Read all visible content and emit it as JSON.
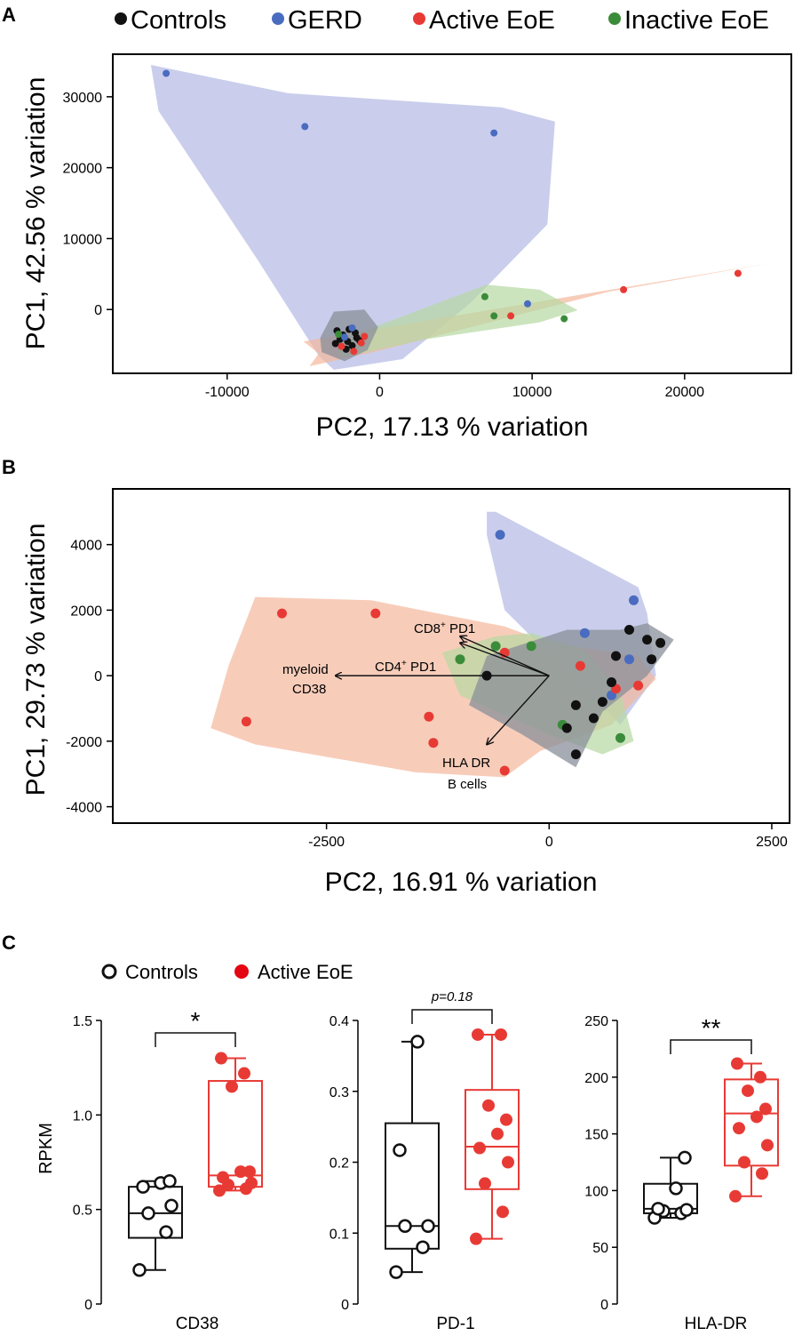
{
  "colors": {
    "controls": "#111111",
    "gerd": "#4a6cc0",
    "active": "#e83a35",
    "inactive": "#3b8c3a",
    "hull_gerd": "#b8bde6",
    "hull_active": "#f3b89d",
    "hull_inactive": "#b7d9a2",
    "hull_controls": "#8a8f9a"
  },
  "legend_top": {
    "items": [
      {
        "key": "controls",
        "label": "Controls"
      },
      {
        "key": "gerd",
        "label": "GERD"
      },
      {
        "key": "active",
        "label": "Active EoE"
      },
      {
        "key": "inactive",
        "label": "Inactive EoE"
      }
    ]
  },
  "legend_c": {
    "items": [
      {
        "key": "controls",
        "label": "Controls"
      },
      {
        "key": "active",
        "label": "Active EoE"
      }
    ]
  },
  "chart_data": [
    {
      "panel": "A",
      "type": "scatter",
      "xlabel": "PC2, 17.13 % variation",
      "ylabel": "PC1, 42.56 % variation",
      "xlim": [
        -17500,
        27000
      ],
      "ylim": [
        -9000,
        36000
      ],
      "xticks": [
        -10000,
        0,
        10000,
        20000
      ],
      "yticks": [
        0,
        10000,
        20000,
        30000
      ],
      "hulls": [
        {
          "group": "gerd",
          "points": [
            [
              -15000,
              34500
            ],
            [
              -6000,
              30500
            ],
            [
              8000,
              28500
            ],
            [
              11500,
              26500
            ],
            [
              11000,
              12000
            ],
            [
              6000,
              1000
            ],
            [
              1500,
              -7000
            ],
            [
              -3000,
              -8500
            ],
            [
              -4000,
              -6500
            ],
            [
              -8000,
              7000
            ],
            [
              -14500,
              28000
            ]
          ]
        },
        {
          "group": "active",
          "points": [
            [
              -5000,
              -4500
            ],
            [
              4000,
              -1200
            ],
            [
              25500,
              6500
            ],
            [
              15000,
              2500
            ],
            [
              0,
              -5800
            ],
            [
              -4600,
              -8000
            ],
            [
              -4000,
              -6200
            ],
            [
              -5000,
              -4500
            ]
          ]
        },
        {
          "group": "inactive",
          "points": [
            [
              -3000,
              -4600
            ],
            [
              7000,
              3500
            ],
            [
              10500,
              2800
            ],
            [
              13000,
              -100
            ],
            [
              10500,
              -1800
            ],
            [
              3000,
              -4200
            ],
            [
              -2500,
              -6800
            ]
          ]
        },
        {
          "group": "controls",
          "points": [
            [
              -3000,
              -300
            ],
            [
              -1000,
              0
            ],
            [
              -100,
              -2500
            ],
            [
              -800,
              -5700
            ],
            [
              -2300,
              -7300
            ],
            [
              -3800,
              -6000
            ],
            [
              -3900,
              -4000
            ]
          ]
        }
      ],
      "points": [
        {
          "group": "gerd",
          "x": -14000,
          "y": 33300
        },
        {
          "group": "gerd",
          "x": -4900,
          "y": 25800
        },
        {
          "group": "gerd",
          "x": 7500,
          "y": 24900
        },
        {
          "group": "gerd",
          "x": 9700,
          "y": 800
        },
        {
          "group": "active",
          "x": 23500,
          "y": 5100
        },
        {
          "group": "active",
          "x": 16000,
          "y": 2800
        },
        {
          "group": "active",
          "x": 8600,
          "y": -900
        },
        {
          "group": "inactive",
          "x": 6900,
          "y": 1800
        },
        {
          "group": "inactive",
          "x": 7500,
          "y": -900
        },
        {
          "group": "inactive",
          "x": 12100,
          "y": -1300
        },
        {
          "group": "controls",
          "x": -2800,
          "y": -3000
        },
        {
          "group": "controls",
          "x": -2400,
          "y": -3600
        },
        {
          "group": "controls",
          "x": -2000,
          "y": -2800
        },
        {
          "group": "controls",
          "x": -1600,
          "y": -3300
        },
        {
          "group": "controls",
          "x": -2600,
          "y": -4200
        },
        {
          "group": "controls",
          "x": -2100,
          "y": -4500
        },
        {
          "group": "controls",
          "x": -1800,
          "y": -5100
        },
        {
          "group": "controls",
          "x": -2200,
          "y": -5600
        },
        {
          "group": "controls",
          "x": -1500,
          "y": -4000
        },
        {
          "group": "controls",
          "x": -2900,
          "y": -4800
        },
        {
          "group": "controls",
          "x": -1300,
          "y": -4400
        },
        {
          "group": "active",
          "x": -1200,
          "y": -4700
        },
        {
          "group": "active",
          "x": -1000,
          "y": -3800
        },
        {
          "group": "active",
          "x": -2500,
          "y": -5200
        },
        {
          "group": "active",
          "x": -1700,
          "y": -5900
        },
        {
          "group": "gerd",
          "x": -1800,
          "y": -2600
        },
        {
          "group": "gerd",
          "x": -2300,
          "y": -3900
        },
        {
          "group": "inactive",
          "x": -2700,
          "y": -3500
        }
      ]
    },
    {
      "panel": "B",
      "type": "scatter",
      "xlabel": "PC2, 16.91 % variation",
      "ylabel": "PC1, 29.73 % variation",
      "xlim": [
        -4900,
        2700
      ],
      "ylim": [
        -4500,
        5700
      ],
      "xticks": [
        -2500,
        0,
        2500
      ],
      "yticks": [
        -4000,
        -2000,
        0,
        2000,
        4000
      ],
      "hulls": [
        {
          "group": "gerd",
          "points": [
            [
              -700,
              5000
            ],
            [
              -600,
              5000
            ],
            [
              1000,
              2700
            ],
            [
              1100,
              1900
            ],
            [
              1200,
              0
            ],
            [
              800,
              -1500
            ],
            [
              -500,
              2000
            ],
            [
              -700,
              4300
            ]
          ]
        },
        {
          "group": "active",
          "points": [
            [
              -3300,
              2400
            ],
            [
              -2000,
              2300
            ],
            [
              -500,
              1500
            ],
            [
              0,
              1000
            ],
            [
              1000,
              600
            ],
            [
              1200,
              -100
            ],
            [
              700,
              -1500
            ],
            [
              -100,
              -2300
            ],
            [
              -500,
              -3100
            ],
            [
              -1500,
              -2950
            ],
            [
              -3300,
              -2100
            ],
            [
              -3800,
              -1600
            ],
            [
              -3600,
              300
            ]
          ]
        },
        {
          "group": "inactive",
          "points": [
            [
              -1200,
              700
            ],
            [
              -600,
              1200
            ],
            [
              -200,
              1300
            ],
            [
              400,
              800
            ],
            [
              800,
              -500
            ],
            [
              950,
              -2000
            ],
            [
              600,
              -2400
            ],
            [
              0,
              -1800
            ],
            [
              -1000,
              -600
            ]
          ]
        },
        {
          "group": "controls",
          "points": [
            [
              -700,
              600
            ],
            [
              200,
              1400
            ],
            [
              800,
              1400
            ],
            [
              1100,
              1600
            ],
            [
              1400,
              1100
            ],
            [
              1100,
              0
            ],
            [
              600,
              -1100
            ],
            [
              300,
              -2800
            ],
            [
              -300,
              -1800
            ],
            [
              -900,
              -900
            ]
          ]
        }
      ],
      "points": [
        {
          "group": "gerd",
          "x": -550,
          "y": 4300
        },
        {
          "group": "gerd",
          "x": 950,
          "y": 2300
        },
        {
          "group": "gerd",
          "x": 400,
          "y": 1300
        },
        {
          "group": "gerd",
          "x": 900,
          "y": 500
        },
        {
          "group": "gerd",
          "x": 700,
          "y": -600
        },
        {
          "group": "active",
          "x": -3000,
          "y": 1900
        },
        {
          "group": "active",
          "x": -1950,
          "y": 1900
        },
        {
          "group": "active",
          "x": -3400,
          "y": -1400
        },
        {
          "group": "active",
          "x": -1350,
          "y": -1250
        },
        {
          "group": "active",
          "x": -1300,
          "y": -2050
        },
        {
          "group": "active",
          "x": -500,
          "y": -2900
        },
        {
          "group": "active",
          "x": -500,
          "y": 700
        },
        {
          "group": "active",
          "x": 350,
          "y": 300
        },
        {
          "group": "active",
          "x": 1000,
          "y": -300
        },
        {
          "group": "active",
          "x": 750,
          "y": -400
        },
        {
          "group": "inactive",
          "x": -1000,
          "y": 500
        },
        {
          "group": "inactive",
          "x": -600,
          "y": 900
        },
        {
          "group": "inactive",
          "x": -200,
          "y": 900
        },
        {
          "group": "inactive",
          "x": 150,
          "y": -1500
        },
        {
          "group": "inactive",
          "x": 800,
          "y": -1900
        },
        {
          "group": "controls",
          "x": -700,
          "y": 0
        },
        {
          "group": "controls",
          "x": 900,
          "y": 1400
        },
        {
          "group": "controls",
          "x": 1100,
          "y": 1100
        },
        {
          "group": "controls",
          "x": 1250,
          "y": 1000
        },
        {
          "group": "controls",
          "x": 750,
          "y": 600
        },
        {
          "group": "controls",
          "x": 1150,
          "y": 500
        },
        {
          "group": "controls",
          "x": 700,
          "y": -200
        },
        {
          "group": "controls",
          "x": 600,
          "y": -800
        },
        {
          "group": "controls",
          "x": 300,
          "y": -900
        },
        {
          "group": "controls",
          "x": 500,
          "y": -1300
        },
        {
          "group": "controls",
          "x": 200,
          "y": -1600
        },
        {
          "group": "controls",
          "x": 300,
          "y": -2400
        }
      ],
      "arrows": {
        "origin": [
          0,
          0
        ],
        "items": [
          {
            "tip": [
              -1000,
              1200
            ],
            "labels": [
              "CD8",
              "PD1"
            ]
          },
          {
            "tip": [
              -1000,
              1000
            ],
            "labels": [
              "CD4",
              "PD1"
            ]
          },
          {
            "tip": [
              -2400,
              0
            ],
            "labels": [
              "myeloid",
              "CD38"
            ]
          },
          {
            "tip": [
              -700,
              -2100
            ],
            "labels": [
              "HLA DR",
              "B cells"
            ]
          }
        ],
        "superscript": "+"
      }
    },
    {
      "panel": "C",
      "type": "box",
      "ylabel": "RPKM",
      "subplots": [
        {
          "name": "CD38",
          "ylim": [
            0,
            1.5
          ],
          "yticks": [
            "0",
            "0.5",
            "1.0",
            "1.5"
          ],
          "ytick_values": [
            0,
            0.5,
            1.0,
            1.5
          ],
          "significance": "*",
          "groups": [
            {
              "group": "controls",
              "filled": false,
              "box": {
                "min": 0.18,
                "q1": 0.35,
                "median": 0.48,
                "q3": 0.62,
                "max": 0.65
              },
              "points": [
                0.18,
                0.38,
                0.48,
                0.52,
                0.62,
                0.64,
                0.65
              ]
            },
            {
              "group": "active",
              "filled": true,
              "box": {
                "min": 0.6,
                "q1": 0.62,
                "median": 0.68,
                "q3": 1.18,
                "max": 1.3
              },
              "points": [
                0.6,
                0.61,
                0.63,
                0.64,
                0.67,
                0.7,
                0.7,
                1.15,
                1.22,
                1.3
              ]
            }
          ]
        },
        {
          "name": "PD-1",
          "ylim": [
            0,
            0.4
          ],
          "yticks": [
            "0",
            "0.1",
            "0.2",
            "0.3",
            "0.4"
          ],
          "ytick_values": [
            0,
            0.1,
            0.2,
            0.3,
            0.4
          ],
          "significance": "p=0.18",
          "groups": [
            {
              "group": "controls",
              "filled": false,
              "box": {
                "min": 0.045,
                "q1": 0.078,
                "median": 0.11,
                "q3": 0.255,
                "max": 0.37
              },
              "points": [
                0.045,
                0.08,
                0.11,
                0.11,
                0.217,
                0.37
              ]
            },
            {
              "group": "active",
              "filled": true,
              "box": {
                "min": 0.092,
                "q1": 0.162,
                "median": 0.222,
                "q3": 0.302,
                "max": 0.38
              },
              "points": [
                0.092,
                0.13,
                0.17,
                0.2,
                0.22,
                0.24,
                0.26,
                0.28,
                0.38,
                0.38
              ]
            }
          ]
        },
        {
          "name": "HLA-DR",
          "ylim": [
            0,
            250
          ],
          "yticks": [
            "0",
            "50",
            "100",
            "150",
            "200",
            "250"
          ],
          "ytick_values": [
            0,
            50,
            100,
            150,
            200,
            250
          ],
          "significance": "**",
          "groups": [
            {
              "group": "controls",
              "filled": false,
              "box": {
                "min": 76,
                "q1": 80,
                "median": 84,
                "q3": 106,
                "max": 129
              },
              "points": [
                76,
                80,
                82,
                83,
                84,
                102,
                129
              ]
            },
            {
              "group": "active",
              "filled": true,
              "box": {
                "min": 95,
                "q1": 122,
                "median": 168,
                "q3": 198,
                "max": 212
              },
              "points": [
                95,
                115,
                125,
                140,
                155,
                165,
                172,
                188,
                200,
                212
              ]
            }
          ]
        }
      ]
    }
  ],
  "panels": [
    {
      "letter": "A"
    },
    {
      "letter": "B"
    },
    {
      "letter": "C"
    }
  ]
}
